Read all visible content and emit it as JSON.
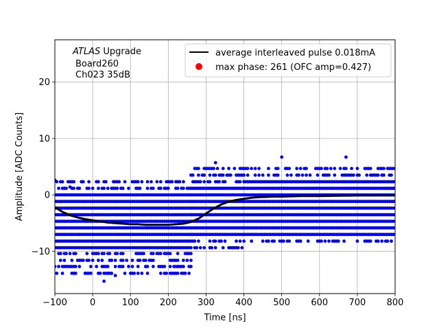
{
  "chart_data": {
    "type": "scatter",
    "xlabel": "Time [ns]",
    "ylabel": "Amplitude [ADC Counts]",
    "xlim": [
      -100,
      800
    ],
    "ylim": [
      -17.5,
      27.5
    ],
    "xticks": [
      -100,
      0,
      100,
      200,
      300,
      400,
      500,
      600,
      700,
      800
    ],
    "yticks": [
      -10,
      0,
      10,
      20
    ],
    "grid": true,
    "annotation": {
      "line1_italic": "ATLAS",
      "line1_rest": " Upgrade",
      "line2": "Board260",
      "line3": "Ch023 35dB"
    },
    "legend": {
      "placement": "top-right",
      "entries": [
        {
          "label": "average interleaved pulse 0.018mA",
          "marker": "line",
          "color": "#000000"
        },
        {
          "label": "max phase: 261 (OFC amp=0.427)",
          "marker": "dot",
          "color": "#ff0000"
        }
      ]
    },
    "series": [
      {
        "name": "samples",
        "color": "#0000ff",
        "kind": "scatter",
        "level_step": 1.17,
        "x_step": 5,
        "bands": [
          {
            "x_range": [
              -100,
              260
            ],
            "dense_levels": [
              -9.36,
              -8.19,
              -7.02,
              -5.85,
              -4.68,
              -3.51,
              -2.34,
              -1.17,
              0
            ],
            "sparse_levels": [
              -13.9,
              -12.7,
              -11.6,
              -10.4,
              1.17,
              2.34
            ],
            "outliers": [
              [
                -100,
                2.6
              ],
              [
                -60,
                1.4
              ],
              [
                30,
                -15.3
              ],
              [
                60,
                -14.3
              ]
            ]
          },
          {
            "x_range": [
              260,
              400
            ],
            "dense_levels": [
              -7.02,
              -5.85,
              -4.68,
              -3.51,
              -2.34,
              -1.17,
              0,
              1.17
            ],
            "sparse_levels": [
              -9.36,
              -8.19,
              2.34,
              3.51,
              4.68
            ],
            "outliers": [
              [
                325,
                5.7
              ],
              [
                360,
                4.7
              ]
            ]
          },
          {
            "x_range": [
              400,
              800
            ],
            "dense_levels": [
              -7.02,
              -5.85,
              -4.68,
              -3.51,
              -2.34,
              -1.17,
              0,
              1.17,
              2.34
            ],
            "sparse_levels": [
              -8.19,
              3.51,
              4.68
            ],
            "outliers": [
              [
                500,
                6.7
              ],
              [
                670,
                6.7
              ]
            ]
          }
        ]
      },
      {
        "name": "average interleaved pulse 0.018mA",
        "color": "#000000",
        "kind": "line",
        "x": [
          -100,
          -80,
          -60,
          -40,
          -20,
          0,
          20,
          40,
          60,
          80,
          100,
          120,
          140,
          160,
          180,
          200,
          220,
          240,
          260,
          280,
          300,
          320,
          340,
          360,
          380,
          400,
          420,
          440,
          460,
          480,
          500,
          550,
          600,
          650,
          700,
          750,
          800
        ],
        "y": [
          -2.2,
          -3.0,
          -3.6,
          -4.0,
          -4.3,
          -4.5,
          -4.7,
          -4.9,
          -5.0,
          -5.1,
          -5.2,
          -5.2,
          -5.3,
          -5.3,
          -5.3,
          -5.3,
          -5.2,
          -5.1,
          -4.8,
          -4.2,
          -3.3,
          -2.4,
          -1.7,
          -1.2,
          -0.9,
          -0.7,
          -0.5,
          -0.4,
          -0.35,
          -0.3,
          -0.3,
          -0.2,
          -0.2,
          -0.15,
          -0.1,
          -0.1,
          -0.1
        ]
      }
    ]
  }
}
